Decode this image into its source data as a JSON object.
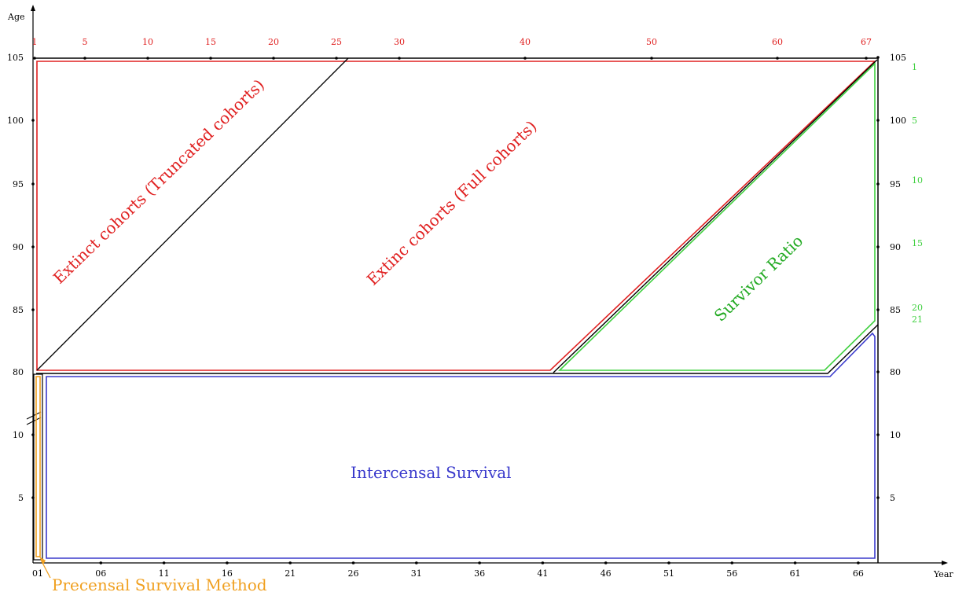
{
  "axes": {
    "x_label": "Year",
    "y_label": "Age",
    "x_ticks": [
      "01",
      "06",
      "11",
      "16",
      "21",
      "26",
      "31",
      "36",
      "41",
      "46",
      "51",
      "56",
      "61",
      "66"
    ],
    "y_ticks_left": [
      "5",
      "10",
      "80",
      "85",
      "90",
      "95",
      "100",
      "105"
    ],
    "y_ticks_right": [
      "5",
      "10",
      "80",
      "85",
      "90",
      "95",
      "100",
      "105"
    ]
  },
  "top_ticks": [
    "1",
    "5",
    "10",
    "15",
    "20",
    "25",
    "30",
    "40",
    "50",
    "60",
    "67"
  ],
  "right_green_ticks": [
    "1",
    "5",
    "10",
    "15",
    "20",
    "21"
  ],
  "regions": {
    "extinct_truncated": "Extinct cohorts (Truncated cohorts)",
    "extinct_full": "Extinc cohorts (Full cohorts)",
    "survivor_ratio": "Survivor Ratio",
    "intercensal": "Intercensal Survival",
    "precensal": "Precensal Survival Method"
  },
  "colors": {
    "axis": "#000000",
    "red": "#e02020",
    "green": "#40d040",
    "green_text": "#22aa22",
    "blue": "#3a3acc",
    "orange": "#f0a020"
  }
}
